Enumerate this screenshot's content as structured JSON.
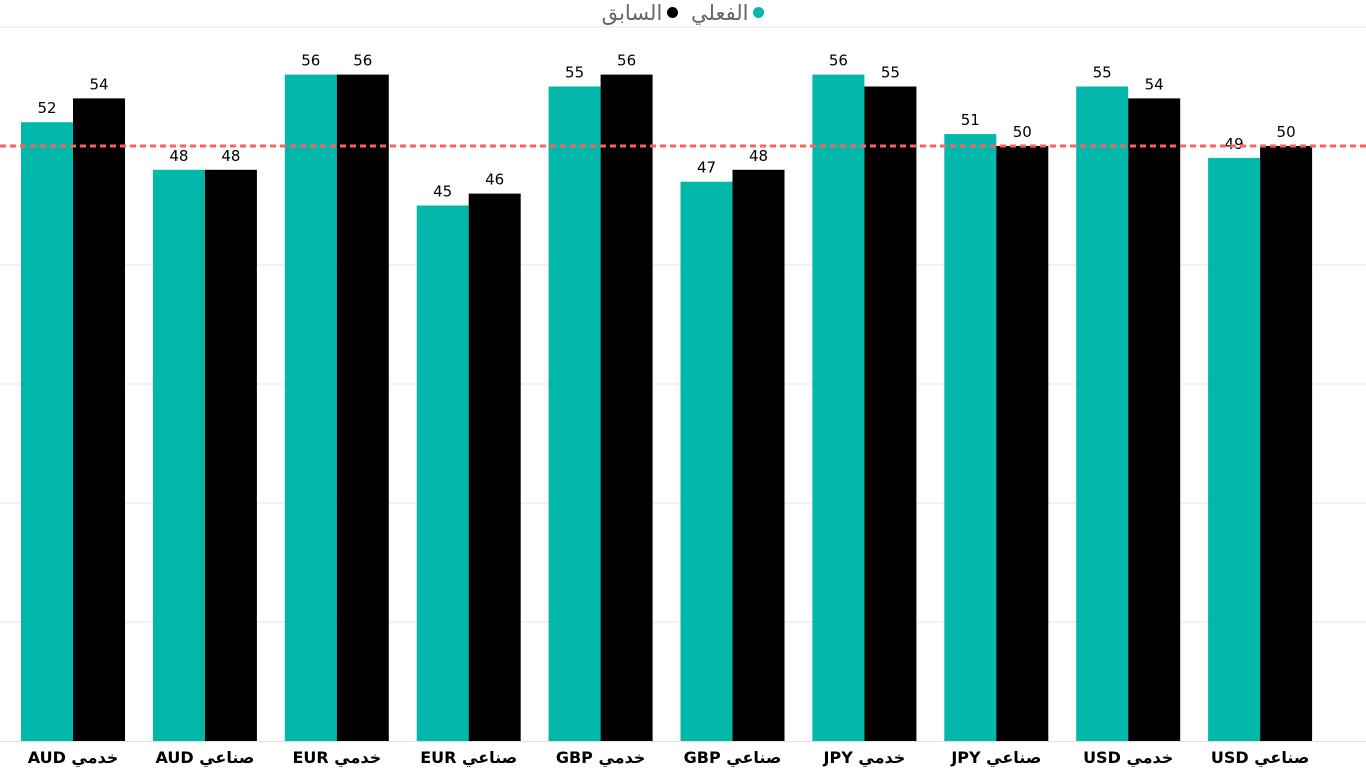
{
  "chart_data": {
    "type": "bar",
    "categories": [
      "AUD خدمي",
      "AUD صناعي",
      "EUR خدمي",
      "EUR صناعي",
      "GBP خدمي",
      "GBP صناعي",
      "JPY خدمي",
      "JPY صناعي",
      "USD خدمي",
      "USD صناعي"
    ],
    "series": [
      {
        "name": "الفعلي",
        "color": "#01B8AA",
        "values": [
          52,
          48,
          56,
          45,
          55,
          47,
          56,
          51,
          55,
          49
        ]
      },
      {
        "name": "السابق",
        "color": "#000000",
        "values": [
          54,
          48,
          56,
          46,
          56,
          48,
          55,
          50,
          54,
          50
        ]
      }
    ],
    "reference_line": {
      "value": 50,
      "color": "#FD625E",
      "style": "dashed"
    },
    "ylim": [
      0,
      60
    ],
    "grid": true,
    "legend_position": "top-center",
    "y_axis_visible": false
  }
}
